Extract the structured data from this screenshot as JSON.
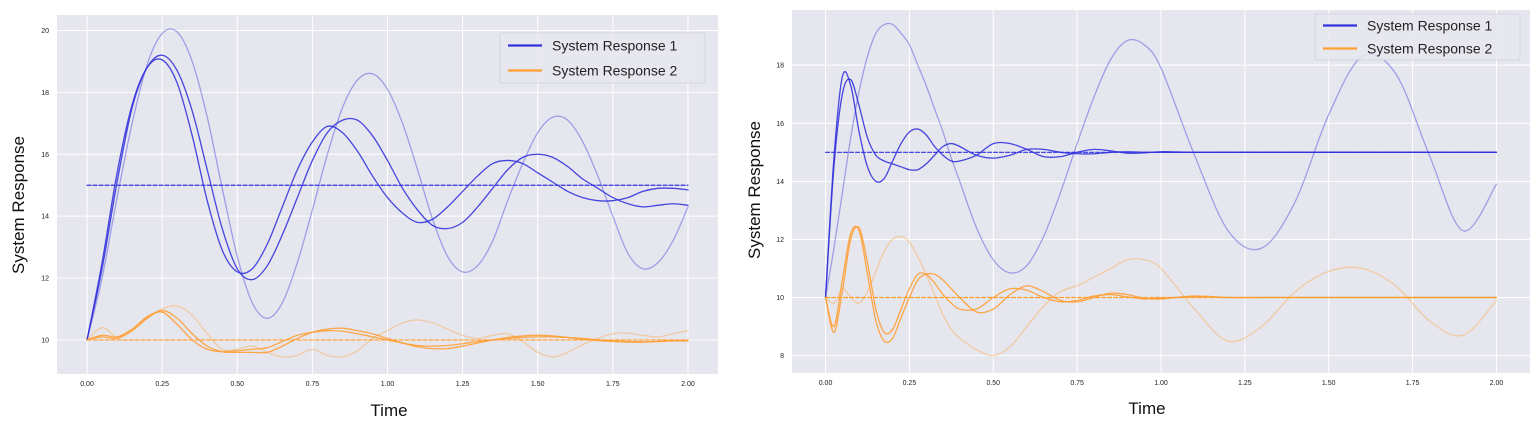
{
  "chart_data": [
    {
      "type": "line",
      "xlabel": "Time",
      "ylabel": "System Response",
      "xlim": [
        -0.1,
        2.1
      ],
      "ylim": [
        8.9,
        20.5
      ],
      "xticks": [
        "0.00",
        "0.25",
        "0.50",
        "0.75",
        "1.00",
        "1.25",
        "1.50",
        "1.75",
        "2.00"
      ],
      "yticks": [
        "10",
        "12",
        "14",
        "16",
        "18",
        "20"
      ],
      "grid": true,
      "legend": {
        "position": "top-right",
        "entries": [
          "System Response 1",
          "System Response 2"
        ]
      },
      "colors": {
        "series1": "#3333dd",
        "series2": "#ff9f33",
        "background": "#e6e6ee"
      },
      "x": [
        0.0,
        0.05,
        0.1,
        0.15,
        0.2,
        0.25,
        0.3,
        0.35,
        0.4,
        0.45,
        0.5,
        0.55,
        0.6,
        0.65,
        0.7,
        0.75,
        0.8,
        0.85,
        0.9,
        0.95,
        1.0,
        1.05,
        1.1,
        1.15,
        1.2,
        1.25,
        1.3,
        1.35,
        1.4,
        1.45,
        1.5,
        1.55,
        1.6,
        1.65,
        1.7,
        1.75,
        1.8,
        1.85,
        1.9,
        1.95,
        2.0
      ],
      "series": [
        {
          "group": 1,
          "role": "setpoint",
          "style": "dashed",
          "opacity": 1.0,
          "values": [
            15,
            15,
            15,
            15,
            15,
            15,
            15,
            15,
            15,
            15,
            15,
            15,
            15,
            15,
            15,
            15,
            15,
            15,
            15,
            15,
            15,
            15,
            15,
            15,
            15,
            15,
            15,
            15,
            15,
            15,
            15,
            15,
            15,
            15,
            15,
            15,
            15,
            15,
            15,
            15,
            15
          ]
        },
        {
          "group": 1,
          "opacity": 0.9,
          "values": [
            10.0,
            12.5,
            15.4,
            17.6,
            18.8,
            19.05,
            18.3,
            16.6,
            14.5,
            12.9,
            12.2,
            12.3,
            13.1,
            14.3,
            15.5,
            16.4,
            16.9,
            16.7,
            16.1,
            15.3,
            14.6,
            14.1,
            13.8,
            13.9,
            14.3,
            14.8,
            15.3,
            15.7,
            15.8,
            15.7,
            15.4,
            15.1,
            14.8,
            14.6,
            14.5,
            14.5,
            14.6,
            14.8,
            14.9,
            14.9,
            14.85
          ]
        },
        {
          "group": 1,
          "opacity": 0.9,
          "values": [
            10.0,
            12.3,
            15.1,
            17.5,
            18.8,
            19.2,
            18.7,
            17.4,
            15.5,
            13.6,
            12.3,
            11.95,
            12.4,
            13.4,
            14.6,
            15.8,
            16.7,
            17.1,
            17.1,
            16.6,
            15.8,
            14.9,
            14.2,
            13.7,
            13.6,
            13.8,
            14.3,
            14.9,
            15.5,
            15.9,
            16.0,
            15.9,
            15.6,
            15.2,
            14.9,
            14.6,
            14.4,
            14.3,
            14.35,
            14.4,
            14.35
          ]
        },
        {
          "group": 1,
          "opacity": 0.4,
          "values": [
            10.0,
            12.0,
            14.6,
            17.0,
            18.9,
            19.9,
            19.95,
            19.0,
            17.2,
            14.9,
            12.7,
            11.2,
            10.7,
            11.2,
            12.5,
            14.2,
            16.0,
            17.5,
            18.4,
            18.6,
            18.1,
            17.0,
            15.5,
            13.9,
            12.7,
            12.2,
            12.4,
            13.2,
            14.5,
            15.7,
            16.7,
            17.2,
            17.1,
            16.4,
            15.3,
            14.0,
            12.8,
            12.3,
            12.5,
            13.2,
            14.3
          ]
        },
        {
          "group": 2,
          "role": "setpoint",
          "style": "dashed",
          "opacity": 1.0,
          "values": [
            10,
            10,
            10,
            10,
            10,
            10,
            10,
            10,
            10,
            10,
            10,
            10,
            10,
            10,
            10,
            10,
            10,
            10,
            10,
            10,
            10,
            10,
            10,
            10,
            10,
            10,
            10,
            10,
            10,
            10,
            10,
            10,
            10,
            10,
            10,
            10,
            10,
            10,
            10,
            10,
            10
          ]
        },
        {
          "group": 2,
          "opacity": 0.9,
          "values": [
            10.0,
            10.15,
            10.1,
            10.35,
            10.75,
            10.9,
            10.5,
            10.0,
            9.7,
            9.62,
            9.65,
            9.7,
            9.75,
            9.95,
            10.15,
            10.25,
            10.3,
            10.28,
            10.2,
            10.1,
            10.0,
            9.9,
            9.82,
            9.8,
            9.82,
            9.88,
            9.95,
            10.0,
            10.05,
            10.08,
            10.1,
            10.1,
            10.08,
            10.05,
            10.0,
            9.97,
            9.95,
            9.94,
            9.95,
            9.97,
            9.98
          ]
        },
        {
          "group": 2,
          "opacity": 0.9,
          "values": [
            10.0,
            10.1,
            10.05,
            10.3,
            10.7,
            10.95,
            10.7,
            10.2,
            9.8,
            9.62,
            9.6,
            9.6,
            9.6,
            9.8,
            10.05,
            10.25,
            10.35,
            10.38,
            10.3,
            10.2,
            10.05,
            9.9,
            9.78,
            9.72,
            9.72,
            9.8,
            9.9,
            10.0,
            10.08,
            10.13,
            10.15,
            10.13,
            10.08,
            10.02,
            9.98,
            9.95,
            9.93,
            9.93,
            9.95,
            9.97,
            9.97
          ]
        },
        {
          "group": 2,
          "opacity": 0.4,
          "values": [
            10.0,
            10.4,
            10.1,
            10.3,
            10.7,
            11.0,
            11.1,
            10.8,
            10.2,
            9.7,
            9.7,
            9.8,
            9.6,
            9.45,
            9.5,
            9.7,
            9.5,
            9.45,
            9.65,
            10.05,
            10.3,
            10.55,
            10.65,
            10.55,
            10.35,
            10.15,
            10.05,
            10.15,
            10.2,
            9.95,
            9.6,
            9.45,
            9.6,
            9.85,
            10.05,
            10.2,
            10.22,
            10.15,
            10.1,
            10.2,
            10.3
          ]
        }
      ]
    },
    {
      "type": "line",
      "xlabel": "Time",
      "ylabel": "System Response",
      "xlim": [
        -0.1,
        2.1
      ],
      "ylim": [
        7.4,
        19.9
      ],
      "xticks": [
        "0.00",
        "0.25",
        "0.50",
        "0.75",
        "1.00",
        "1.25",
        "1.50",
        "1.75",
        "2.00"
      ],
      "yticks": [
        "8",
        "10",
        "12",
        "14",
        "16",
        "18"
      ],
      "grid": true,
      "legend": {
        "position": "top-right",
        "entries": [
          "System Response 1",
          "System Response 2"
        ]
      },
      "colors": {
        "series1": "#3333dd",
        "series2": "#ff9f33",
        "background": "#e6e6ee"
      },
      "x": [
        0.0,
        0.025,
        0.05,
        0.075,
        0.1,
        0.125,
        0.15,
        0.175,
        0.2,
        0.225,
        0.25,
        0.275,
        0.3,
        0.325,
        0.35,
        0.375,
        0.4,
        0.45,
        0.5,
        0.55,
        0.6,
        0.65,
        0.7,
        0.75,
        0.8,
        0.85,
        0.9,
        0.95,
        1.0,
        1.1,
        1.2,
        1.3,
        1.4,
        1.5,
        1.6,
        1.7,
        1.8,
        1.9,
        2.0
      ],
      "series": [
        {
          "group": 1,
          "role": "setpoint",
          "style": "dashed",
          "opacity": 1.0,
          "values": [
            15,
            15,
            15,
            15,
            15,
            15,
            15,
            15,
            15,
            15,
            15,
            15,
            15,
            15,
            15,
            15,
            15,
            15,
            15,
            15,
            15,
            15,
            15,
            15,
            15,
            15,
            15,
            15,
            15,
            15,
            15,
            15,
            15,
            15,
            15,
            15,
            15,
            15,
            15
          ]
        },
        {
          "group": 1,
          "opacity": 0.9,
          "values": [
            10.0,
            14.5,
            17.0,
            17.5,
            16.6,
            15.5,
            14.9,
            14.7,
            14.6,
            14.5,
            14.4,
            14.4,
            14.6,
            14.9,
            15.2,
            15.3,
            15.2,
            14.9,
            14.8,
            14.9,
            15.1,
            15.1,
            15.0,
            14.95,
            14.95,
            15.0,
            15.02,
            15.0,
            15.0,
            15.0,
            15.0,
            15.0,
            15.0,
            15.0,
            15.0,
            15.0,
            15.0,
            15.0,
            15.0
          ]
        },
        {
          "group": 1,
          "opacity": 0.9,
          "values": [
            10.0,
            14.8,
            17.6,
            17.3,
            15.7,
            14.5,
            14.0,
            14.1,
            14.7,
            15.3,
            15.7,
            15.8,
            15.6,
            15.2,
            14.9,
            14.7,
            14.7,
            14.9,
            15.3,
            15.3,
            15.1,
            14.85,
            14.85,
            15.0,
            15.1,
            15.05,
            14.97,
            14.98,
            15.02,
            15.0,
            15.0,
            15.0,
            15.0,
            15.0,
            15.0,
            15.0,
            15.0,
            15.0,
            15.0
          ]
        },
        {
          "group": 1,
          "opacity": 0.4,
          "values": [
            10.0,
            11.7,
            13.6,
            15.5,
            17.1,
            18.3,
            19.1,
            19.4,
            19.4,
            19.1,
            18.7,
            18.0,
            17.3,
            16.5,
            15.7,
            14.8,
            14.0,
            12.4,
            11.3,
            10.85,
            11.1,
            12.1,
            13.6,
            15.3,
            16.9,
            18.2,
            18.85,
            18.7,
            17.9,
            14.9,
            12.3,
            11.7,
            13.3,
            16.3,
            18.3,
            17.7,
            14.9,
            12.3,
            13.9
          ]
        },
        {
          "group": 2,
          "role": "setpoint",
          "style": "dashed",
          "opacity": 1.0,
          "values": [
            10,
            10,
            10,
            10,
            10,
            10,
            10,
            10,
            10,
            10,
            10,
            10,
            10,
            10,
            10,
            10,
            10,
            10,
            10,
            10,
            10,
            10,
            10,
            10,
            10,
            10,
            10,
            10,
            10,
            10,
            10,
            10,
            10,
            10,
            10,
            10,
            10,
            10,
            10
          ]
        },
        {
          "group": 2,
          "opacity": 0.9,
          "values": [
            10.0,
            8.8,
            10.2,
            12.0,
            12.4,
            11.2,
            9.6,
            8.8,
            8.9,
            9.6,
            10.3,
            10.8,
            10.8,
            10.5,
            10.1,
            9.8,
            9.6,
            9.6,
            10.0,
            10.3,
            10.25,
            10.0,
            9.85,
            9.9,
            10.05,
            10.1,
            10.02,
            9.95,
            9.98,
            10.02,
            10.0,
            10.0,
            10.0,
            10.0,
            10.0,
            10.0,
            10.0,
            10.0,
            10.0
          ]
        },
        {
          "group": 2,
          "opacity": 0.9,
          "values": [
            10.0,
            9.0,
            10.6,
            12.2,
            12.3,
            10.8,
            9.2,
            8.5,
            8.6,
            9.3,
            10.0,
            10.6,
            10.8,
            10.8,
            10.6,
            10.3,
            10.0,
            9.5,
            9.6,
            10.1,
            10.4,
            10.2,
            9.9,
            9.85,
            10.0,
            10.15,
            10.1,
            9.97,
            9.95,
            10.05,
            10.0,
            10.0,
            10.0,
            10.0,
            10.0,
            10.0,
            10.0,
            10.0,
            10.0
          ]
        },
        {
          "group": 2,
          "opacity": 0.4,
          "values": [
            10.0,
            9.8,
            10.3,
            10.0,
            9.8,
            10.2,
            10.9,
            11.6,
            12.0,
            12.1,
            11.9,
            11.4,
            10.8,
            10.1,
            9.4,
            8.9,
            8.6,
            8.2,
            8.0,
            8.3,
            9.0,
            9.7,
            10.2,
            10.4,
            10.7,
            11.0,
            11.3,
            11.3,
            11.0,
            9.6,
            8.5,
            9.0,
            10.2,
            10.9,
            11.0,
            10.4,
            9.2,
            8.7,
            9.9
          ]
        }
      ]
    }
  ]
}
